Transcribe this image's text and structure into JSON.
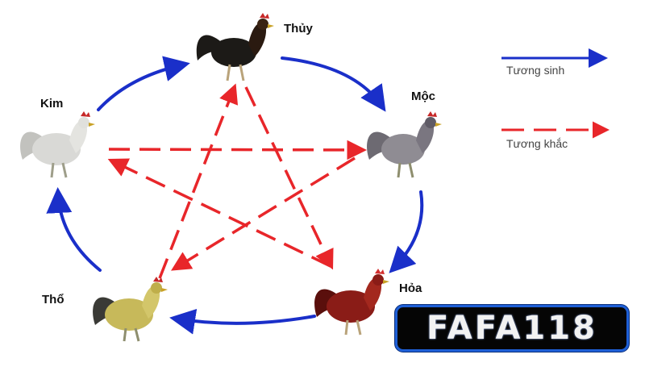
{
  "nodes": {
    "thuy": "Thủy",
    "moc": "Mộc",
    "hoa": "Hỏa",
    "tho": "Thổ",
    "kim": "Kim"
  },
  "legend": {
    "generating": "Tương sinh",
    "overcoming": "Tương khắc",
    "generating_color": "#1a2fc9",
    "overcoming_color": "#e8262a"
  },
  "rooster_colors": {
    "thuy": "#1c1a17",
    "moc": "#8f8c93",
    "hoa": "#8a1c17",
    "tho": "#c7b95a",
    "kim": "#d9d9d6"
  },
  "brand": {
    "text": "FAFA118"
  }
}
